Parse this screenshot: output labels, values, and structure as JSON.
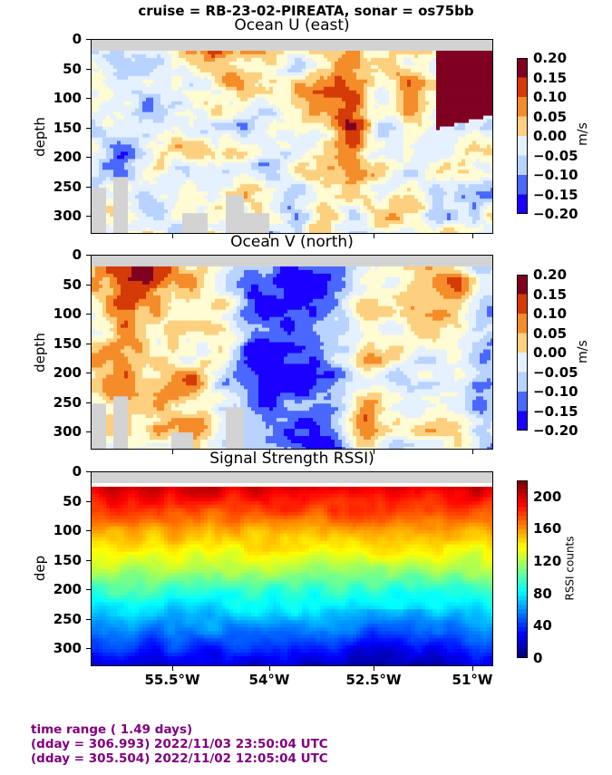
{
  "title": "cruise = RB-23-02-PIREATA,  sonar = os75bb",
  "footer": {
    "line1": "time range ( 1.49 days)",
    "line2": "(dday = 306.993) 2022/11/03 23:50:04 UTC",
    "line3": "(dday = 305.504) 2022/11/02 12:05:04 UTC"
  },
  "chart_data": [
    {
      "type": "heatmap",
      "title": "Ocean U (east)",
      "ylabel": "depth",
      "yticks": [
        "0",
        "50",
        "100",
        "150",
        "200",
        "250",
        "300"
      ],
      "ylim": [
        330,
        0
      ],
      "colorbar": {
        "label": "m/s",
        "ticks": [
          "0.20",
          "0.15",
          "0.10",
          "0.05",
          "0.00",
          "−0.05",
          "−0.10",
          "−0.15",
          "−0.20"
        ],
        "range": [
          -0.2,
          0.2
        ]
      }
    },
    {
      "type": "heatmap",
      "title": "Ocean V (north)",
      "ylabel": "depth",
      "yticks": [
        "0",
        "50",
        "100",
        "150",
        "200",
        "250",
        "300"
      ],
      "ylim": [
        330,
        0
      ],
      "colorbar": {
        "label": "m/s",
        "ticks": [
          "0.20",
          "0.15",
          "0.10",
          "0.05",
          "0.00",
          "−0.05",
          "−0.10",
          "−0.15",
          "−0.20"
        ],
        "range": [
          -0.2,
          0.2
        ]
      }
    },
    {
      "type": "heatmap",
      "title": "Signal Strength RSSI)",
      "ylabel": "dep",
      "yticks": [
        "0",
        "50",
        "100",
        "150",
        "200",
        "250",
        "300"
      ],
      "ylim": [
        330,
        0
      ],
      "xticks": [
        "55.5°W",
        "54°W",
        "52.5°W",
        "51°W"
      ],
      "colorbar": {
        "label": "RSSI counts",
        "ticks": [
          "200",
          "160",
          "120",
          "80",
          "40",
          "0"
        ],
        "range": [
          0,
          220
        ]
      }
    }
  ]
}
